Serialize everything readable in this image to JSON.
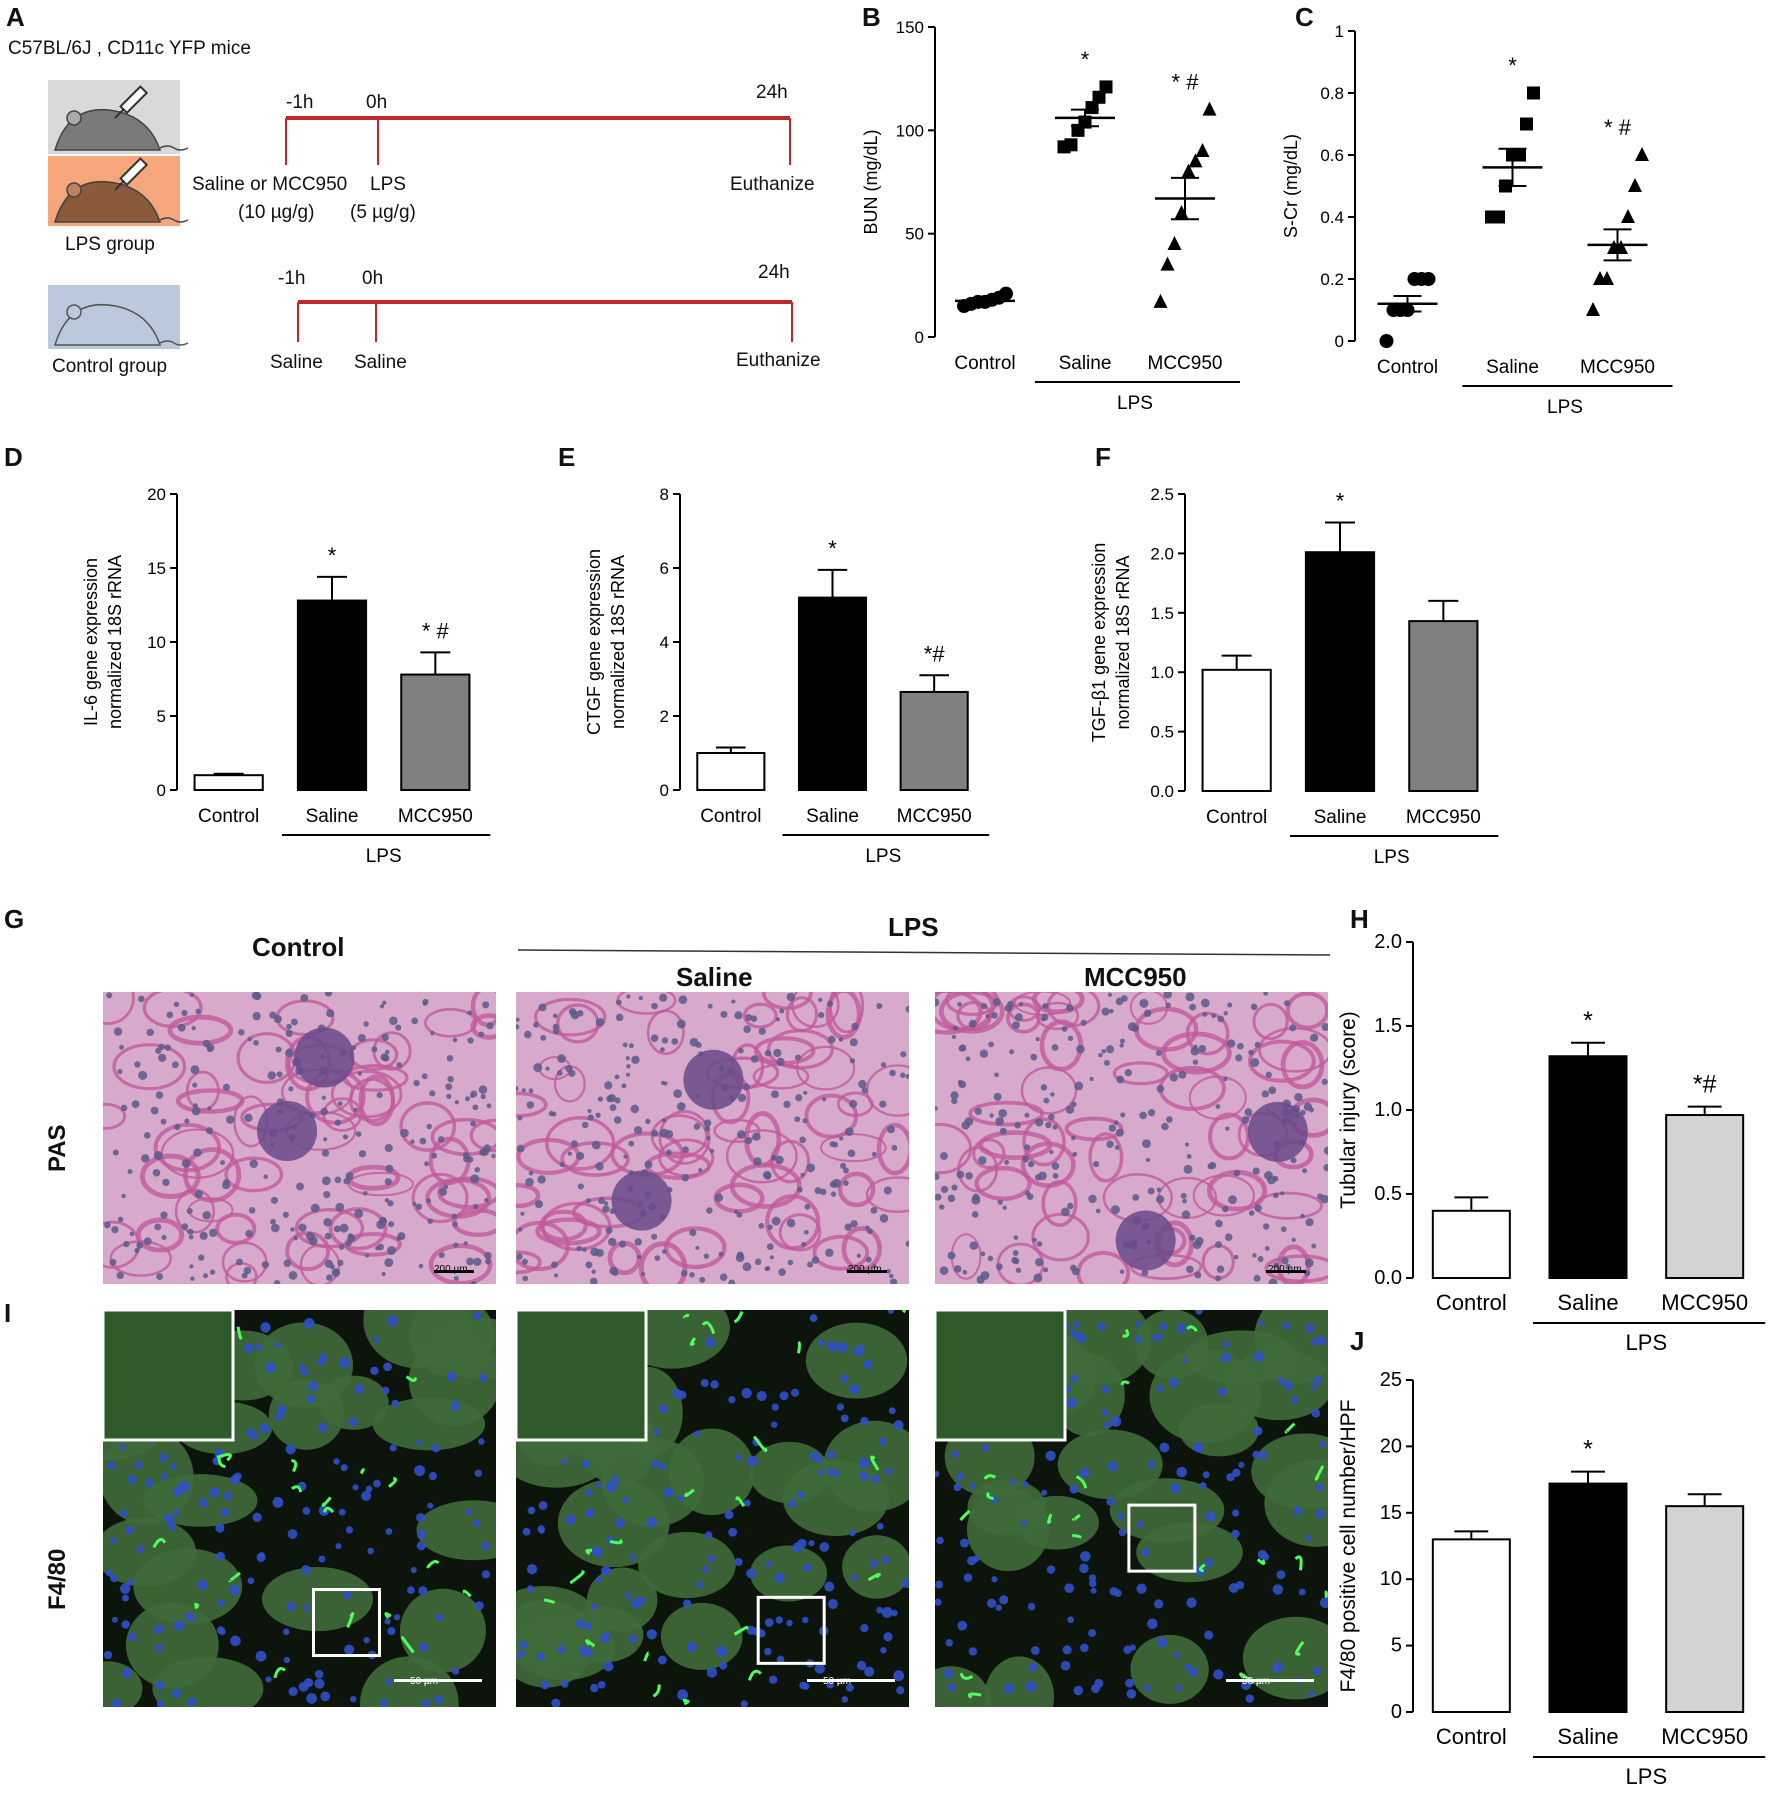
{
  "panels": {
    "A": {
      "label": "A",
      "mouse_strain": "C57BL/6J , CD11c YFP mice",
      "lps_group_label": "LPS group",
      "control_group_label": "Control group",
      "lps_timeline": {
        "t1": "-1h",
        "t2": "0h",
        "t3": "24h",
        "pre_line1": "Saline or MCC950",
        "pre_line2": "(10 µg/g)",
        "lps_line1": "LPS",
        "lps_line2": "(5 µg/g)",
        "end": "Euthanize"
      },
      "control_timeline": {
        "t1": "-1h",
        "t2": "0h",
        "t3": "24h",
        "pre": "Saline",
        "mid": "Saline",
        "end": "Euthanize"
      },
      "colors": {
        "timeline": "#c0282d",
        "lps_bg_top": "#d9d9d9",
        "lps_bg_bottom": "#f5a67a",
        "control_bg": "#bcc8dc"
      }
    },
    "G": {
      "label": "G",
      "group_control": "Control",
      "group_lps": "LPS",
      "sub_saline": "Saline",
      "sub_mcc": "MCC950",
      "row": "PAS",
      "scale": "200 µm"
    },
    "I": {
      "label": "I",
      "row": "F4/80",
      "scale": "50 µm"
    }
  },
  "chart_data": [
    {
      "id": "B",
      "label": "B",
      "type": "scatter",
      "ylabel": "BUN (mg/dL)",
      "ylim": [
        0,
        150
      ],
      "yticks": [
        0,
        50,
        100,
        150
      ],
      "categories": [
        "Control",
        "Saline",
        "MCC950"
      ],
      "group_label": "LPS",
      "series": [
        {
          "marker": "circle",
          "values": [
            15,
            16,
            17,
            17,
            18,
            19,
            21
          ],
          "mean": 17.5,
          "sem": 1
        },
        {
          "marker": "square",
          "values": [
            92,
            93,
            100,
            104,
            111,
            116,
            121
          ],
          "mean": 106,
          "sem": 4,
          "annot": "*"
        },
        {
          "marker": "triangle",
          "values": [
            17,
            35,
            45,
            60,
            80,
            85,
            90,
            110
          ],
          "mean": 67,
          "sem": 10,
          "annot": "* #"
        }
      ]
    },
    {
      "id": "C",
      "label": "C",
      "type": "scatter",
      "ylabel": "S-Cr (mg/dL)",
      "ylim": [
        0,
        1.0
      ],
      "yticks": [
        0.0,
        0.2,
        0.4,
        0.6,
        0.8,
        1.0
      ],
      "categories": [
        "Control",
        "Saline",
        "MCC950"
      ],
      "group_label": "LPS",
      "series": [
        {
          "marker": "circle",
          "values": [
            0.0,
            0.1,
            0.1,
            0.1,
            0.2,
            0.2,
            0.2
          ],
          "mean": 0.12,
          "sem": 0.025
        },
        {
          "marker": "square",
          "values": [
            0.4,
            0.4,
            0.5,
            0.6,
            0.6,
            0.7,
            0.8
          ],
          "mean": 0.56,
          "sem": 0.06,
          "annot": "*"
        },
        {
          "marker": "triangle",
          "values": [
            0.1,
            0.2,
            0.2,
            0.3,
            0.3,
            0.4,
            0.5,
            0.6
          ],
          "mean": 0.31,
          "sem": 0.05,
          "annot": "* #"
        }
      ]
    },
    {
      "id": "D",
      "label": "D",
      "type": "bar",
      "ylabel": [
        "IL-6 gene expression",
        "normalized 18S rRNA"
      ],
      "ylim": [
        0,
        20
      ],
      "yticks": [
        0,
        5,
        10,
        15,
        20
      ],
      "categories": [
        "Control",
        "Saline",
        "MCC950"
      ],
      "group_label": "LPS",
      "values": [
        1.0,
        12.8,
        7.8
      ],
      "errors": [
        0.1,
        1.6,
        1.5
      ],
      "annots": [
        "",
        "*",
        "* #"
      ],
      "colors": [
        "#ffffff",
        "#000000",
        "#808080"
      ]
    },
    {
      "id": "E",
      "label": "E",
      "type": "bar",
      "ylabel": [
        "CTGF gene expression",
        "normalized 18S rRNA"
      ],
      "ylim": [
        0,
        8
      ],
      "yticks": [
        0,
        2,
        4,
        6,
        8
      ],
      "categories": [
        "Control",
        "Saline",
        "MCC950"
      ],
      "group_label": "LPS",
      "values": [
        1.0,
        5.2,
        2.65
      ],
      "errors": [
        0.15,
        0.75,
        0.45
      ],
      "annots": [
        "",
        "*",
        "*#"
      ],
      "colors": [
        "#ffffff",
        "#000000",
        "#808080"
      ]
    },
    {
      "id": "F",
      "label": "F",
      "type": "bar",
      "ylabel": [
        "TGF-β1 gene expression",
        "normalized 18S rRNA"
      ],
      "ylim": [
        0,
        2.5
      ],
      "yticks": [
        "0.0",
        "0.5",
        "1.0",
        "1.5",
        "2.0",
        "2.5"
      ],
      "categories": [
        "Control",
        "Saline",
        "MCC950"
      ],
      "group_label": "LPS",
      "values": [
        1.02,
        2.01,
        1.43
      ],
      "errors": [
        0.12,
        0.25,
        0.17
      ],
      "annots": [
        "",
        "*",
        ""
      ],
      "colors": [
        "#ffffff",
        "#000000",
        "#808080"
      ]
    },
    {
      "id": "H",
      "label": "H",
      "type": "bar",
      "ylabel": [
        "Tubular injury (score)"
      ],
      "ylim": [
        0,
        2.0
      ],
      "yticks": [
        "0.0",
        "0.5",
        "1.0",
        "1.5",
        "2.0"
      ],
      "categories": [
        "Control",
        "Saline",
        "MCC950"
      ],
      "group_label": "LPS",
      "values": [
        0.4,
        1.32,
        0.97
      ],
      "errors": [
        0.08,
        0.08,
        0.05
      ],
      "annots": [
        "",
        "*",
        "*#"
      ],
      "colors": [
        "#ffffff",
        "#000000",
        "#d3d3d3"
      ]
    },
    {
      "id": "J",
      "label": "J",
      "type": "bar",
      "ylabel": [
        "F4/80 positive cell number/HPF"
      ],
      "ylim": [
        0,
        25
      ],
      "yticks": [
        0,
        5,
        10,
        15,
        20,
        25
      ],
      "categories": [
        "Control",
        "Saline",
        "MCC950"
      ],
      "group_label": "LPS",
      "values": [
        13.0,
        17.2,
        15.5
      ],
      "errors": [
        0.6,
        0.9,
        0.9
      ],
      "annots": [
        "",
        "*",
        ""
      ],
      "colors": [
        "#ffffff",
        "#000000",
        "#d3d3d3"
      ]
    }
  ]
}
